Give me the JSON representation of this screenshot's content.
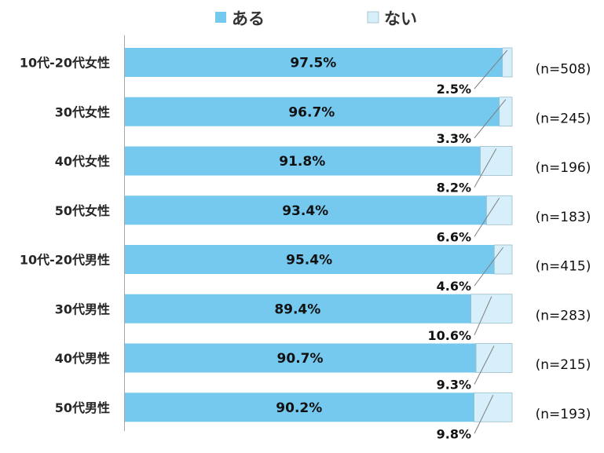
{
  "chart_data": {
    "type": "bar",
    "orientation": "horizontal",
    "stacked": "percent",
    "categories": [
      "10代-20代女性",
      "30代女性",
      "40代女性",
      "50代女性",
      "10代-20代男性",
      "30代男性",
      "40代男性",
      "50代男性"
    ],
    "series": [
      {
        "name": "ある",
        "color": "#75C9EE",
        "values": [
          97.5,
          96.7,
          91.8,
          93.4,
          95.4,
          89.4,
          90.7,
          90.2
        ],
        "labels": [
          "97.5%",
          "96.7%",
          "91.8%",
          "93.4%",
          "95.4%",
          "89.4%",
          "90.7%",
          "90.2%"
        ]
      },
      {
        "name": "ない",
        "color": "#D7EFFA",
        "values": [
          2.5,
          3.3,
          8.2,
          6.6,
          4.6,
          10.6,
          9.3,
          9.8
        ],
        "labels": [
          "2.5%",
          "3.3%",
          "8.2%",
          "6.6%",
          "4.6%",
          "10.6%",
          "9.3%",
          "9.8%"
        ]
      }
    ],
    "sample_sizes": [
      "(n=508)",
      "(n=245)",
      "(n=196)",
      "(n=183)",
      "(n=415)",
      "(n=283)",
      "(n=215)",
      "(n=193)"
    ],
    "xlim": [
      0,
      100
    ],
    "legend": "top-center",
    "grid": false
  }
}
